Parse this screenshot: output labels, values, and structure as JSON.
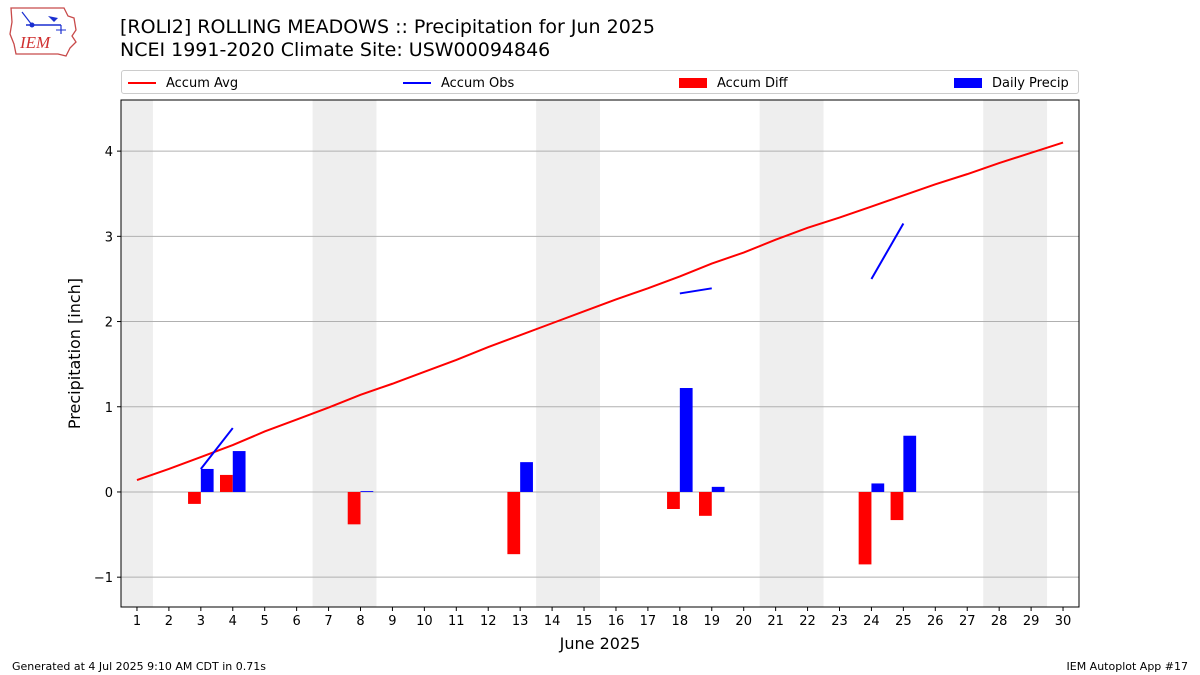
{
  "header": {
    "title_line1": "[ROLI2] ROLLING MEADOWS :: Precipitation for Jun 2025",
    "title_line2": "NCEI 1991-2020 Climate Site: USW00094846",
    "logo_text": "IEM"
  },
  "footer": {
    "generated": "Generated at 4 Jul 2025 9:10 AM CDT in 0.71s",
    "app": "IEM Autoplot App #17"
  },
  "legend": {
    "accum_avg": "Accum Avg",
    "accum_obs": "Accum Obs",
    "accum_diff": "Accum Diff",
    "daily_precip": "Daily Precip"
  },
  "colors": {
    "accum_avg": "#ff0000",
    "accum_obs": "#0000ff",
    "accum_diff": "#ff0000",
    "daily_precip": "#0000ff",
    "weekend_shade": "#eeeeee",
    "grid": "#b0b0b0"
  },
  "chart_data": {
    "type": "bar",
    "xlabel": "June 2025",
    "ylabel": "Precipitation [inch]",
    "days": [
      1,
      2,
      3,
      4,
      5,
      6,
      7,
      8,
      9,
      10,
      11,
      12,
      13,
      14,
      15,
      16,
      17,
      18,
      19,
      20,
      21,
      22,
      23,
      24,
      25,
      26,
      27,
      28,
      29,
      30
    ],
    "xlim": [
      0.5,
      30.5
    ],
    "ylim": [
      -1.35,
      4.6
    ],
    "yticks": [
      -1,
      0,
      1,
      2,
      3,
      4
    ],
    "ytick_labels": [
      "−1",
      "0",
      "1",
      "2",
      "3",
      "4"
    ],
    "grid": "horizontal",
    "legend_position": "top",
    "shaded_weekend_ranges": [
      [
        0.5,
        1.5
      ],
      [
        6.5,
        8.5
      ],
      [
        13.5,
        15.5
      ],
      [
        20.5,
        22.5
      ],
      [
        27.5,
        29.5
      ]
    ],
    "accum_avg": [
      0.14,
      0.27,
      0.41,
      0.55,
      0.71,
      0.85,
      0.99,
      1.14,
      1.27,
      1.41,
      1.55,
      1.7,
      1.84,
      1.98,
      2.12,
      2.26,
      2.39,
      2.53,
      2.68,
      2.81,
      2.96,
      3.1,
      3.22,
      3.35,
      3.48,
      3.61,
      3.73,
      3.86,
      3.98,
      4.1
    ],
    "accum_obs_segments": [
      {
        "x": [
          3,
          4
        ],
        "y": [
          0.27,
          0.75
        ]
      },
      {
        "x": [
          18,
          19
        ],
        "y": [
          2.33,
          2.39
        ]
      },
      {
        "x": [
          24,
          25
        ],
        "y": [
          2.5,
          3.15
        ]
      }
    ],
    "accum_diff": [
      {
        "day": 3,
        "value": -0.14
      },
      {
        "day": 4,
        "value": 0.2
      },
      {
        "day": 8,
        "value": -0.38
      },
      {
        "day": 13,
        "value": -0.73
      },
      {
        "day": 18,
        "value": -0.2
      },
      {
        "day": 19,
        "value": -0.28
      },
      {
        "day": 24,
        "value": -0.85
      },
      {
        "day": 25,
        "value": -0.33
      }
    ],
    "daily_precip": [
      {
        "day": 3,
        "value": 0.27
      },
      {
        "day": 4,
        "value": 0.48
      },
      {
        "day": 8,
        "value": 0.01
      },
      {
        "day": 13,
        "value": 0.35
      },
      {
        "day": 18,
        "value": 1.22
      },
      {
        "day": 19,
        "value": 0.06
      },
      {
        "day": 24,
        "value": 0.1
      },
      {
        "day": 25,
        "value": 0.66
      }
    ]
  }
}
